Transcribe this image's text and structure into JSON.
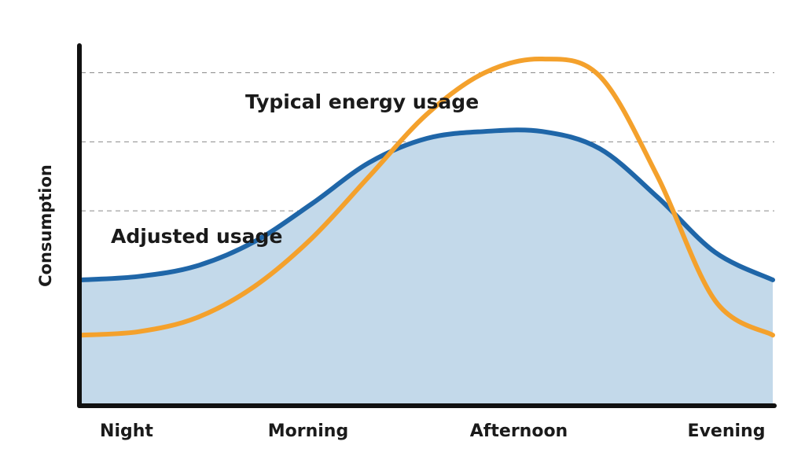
{
  "chart_data": {
    "type": "line",
    "x": [
      0,
      1,
      2,
      3,
      4,
      5,
      6,
      7,
      8,
      9,
      10,
      11,
      12
    ],
    "categories": [
      "Night",
      "Morning",
      "Afternoon",
      "Evening"
    ],
    "ylabel": "Consumption",
    "ylim": [
      0,
      5
    ],
    "grid": "dashed horizontal",
    "series": [
      {
        "name": "Adjusted usage",
        "color": "#1f66a8",
        "fill": "#c3d9ea",
        "values": [
          1.8,
          1.85,
          2.0,
          2.35,
          2.9,
          3.5,
          3.85,
          3.95,
          3.95,
          3.7,
          3.0,
          2.2,
          1.8
        ]
      },
      {
        "name": "Typical energy usage",
        "color": "#f4a12c",
        "values": [
          1.0,
          1.05,
          1.25,
          1.7,
          2.4,
          3.3,
          4.2,
          4.8,
          5.0,
          4.75,
          3.3,
          1.5,
          1.0
        ]
      }
    ]
  }
}
